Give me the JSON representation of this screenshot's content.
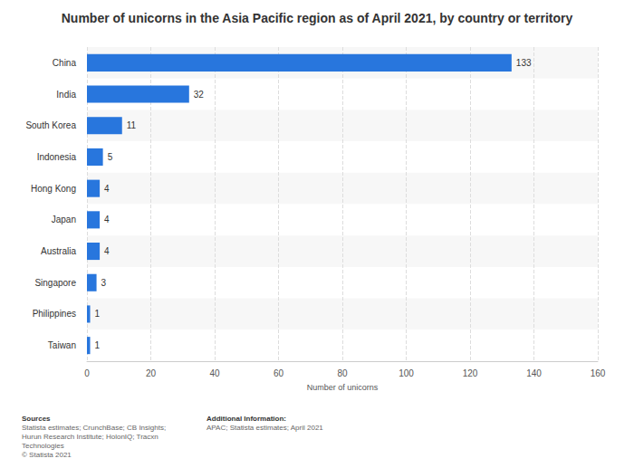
{
  "chart_data": {
    "type": "bar",
    "orientation": "horizontal",
    "title": "Number of unicorns in the Asia Pacific region as of April 2021, by country or territory",
    "categories": [
      "China",
      "India",
      "South Korea",
      "Indonesia",
      "Hong Kong",
      "Japan",
      "Australia",
      "Singapore",
      "Philippines",
      "Taiwan"
    ],
    "values": [
      133,
      32,
      11,
      5,
      4,
      4,
      4,
      3,
      1,
      1
    ],
    "color": "#2876dd",
    "xlabel": "Number of unicorns",
    "xlim": [
      0,
      160
    ],
    "xticks": [
      0,
      20,
      40,
      60,
      80,
      100,
      120,
      140,
      160
    ],
    "grid": true,
    "data_labels": true
  },
  "footer": {
    "sources": {
      "heading": "Sources",
      "lines": [
        "Statista estimates; CrunchBase; CB Insights;",
        "Hurun Research Institute; HolonIQ; Tracxn",
        "Technologies",
        "© Statista 2021"
      ]
    },
    "additional_information": {
      "heading": "Additional Information:",
      "lines": [
        "APAC; Statista estimates; April 2021"
      ]
    }
  }
}
